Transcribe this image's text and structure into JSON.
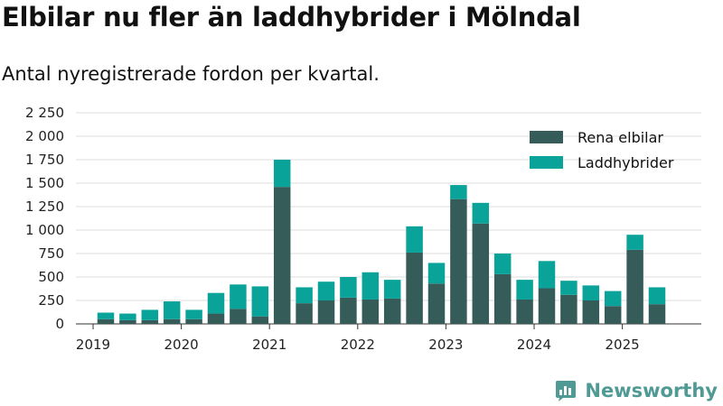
{
  "title": "Elbilar nu fler än laddhybrider i Mölndal",
  "subtitle": "Antal nyregistrerade fordon per kvartal.",
  "brand": {
    "name": "Newsworthy"
  },
  "colors": {
    "electric": "#365c5a",
    "hybrid": "#0aa39a",
    "grid": "#dddddd",
    "brand": "#4f9a94"
  },
  "chart_data": {
    "type": "bar",
    "stacked": true,
    "x_tick_labels": [
      "2019",
      "2020",
      "2021",
      "2022",
      "2023",
      "2024",
      "2025"
    ],
    "y_tick_labels": [
      "0",
      "250",
      "500",
      "750",
      "1 000",
      "1 250",
      "1 500",
      "1 750",
      "2 000",
      "2 250"
    ],
    "ylim": [
      0,
      2250
    ],
    "grid": true,
    "legend_position": "top-right",
    "categories": [
      "2019Q2",
      "2019Q3",
      "2019Q4",
      "2020Q1",
      "2020Q2",
      "2020Q3",
      "2020Q4",
      "2021Q1",
      "2021Q2",
      "2021Q3",
      "2021Q4",
      "2022Q1",
      "2022Q2",
      "2022Q3",
      "2022Q4",
      "2023Q1",
      "2023Q2",
      "2023Q3",
      "2023Q4",
      "2024Q1",
      "2024Q2",
      "2024Q3",
      "2024Q4",
      "2025Q1",
      "2025Q2",
      "2025Q3"
    ],
    "series": [
      {
        "name": "Rena elbilar",
        "values": [
          50,
          40,
          40,
          50,
          50,
          110,
          160,
          80,
          1460,
          220,
          250,
          280,
          260,
          270,
          760,
          430,
          1330,
          1070,
          530,
          260,
          380,
          310,
          250,
          190,
          790,
          210
        ]
      },
      {
        "name": "Laddhybrider",
        "values": [
          70,
          70,
          110,
          190,
          100,
          220,
          260,
          320,
          290,
          170,
          200,
          220,
          290,
          200,
          280,
          220,
          150,
          220,
          220,
          210,
          290,
          150,
          160,
          160,
          160,
          180
        ]
      }
    ]
  }
}
